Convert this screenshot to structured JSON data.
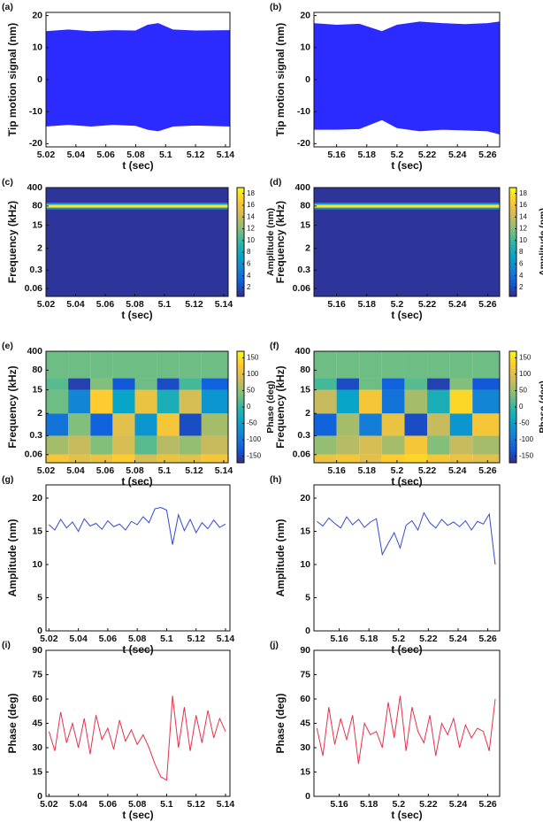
{
  "colormap": [
    "#352a87",
    "#0f5cdd",
    "#1481d6",
    "#06a4ca",
    "#2eb7a4",
    "#87bf77",
    "#d1bb59",
    "#fec832",
    "#f9fb0e"
  ],
  "chart_data": [
    {
      "label": "(a)",
      "type": "area",
      "xlabel": "t (sec)",
      "ylabel": "Tip motion signal (nm)",
      "color": "#2b2bff",
      "xlim": [
        5.02,
        5.143
      ],
      "xticks": [
        5.02,
        5.04,
        5.06,
        5.08,
        5.1,
        5.12,
        5.14
      ],
      "ylim": [
        -21,
        21
      ],
      "yticks": [
        -20,
        -10,
        0,
        10,
        20
      ],
      "x": [
        5.02,
        5.035,
        5.05,
        5.065,
        5.08,
        5.088,
        5.095,
        5.105,
        5.12,
        5.143
      ],
      "upper": [
        15,
        15.5,
        15,
        15.3,
        15.2,
        17,
        17.5,
        15.5,
        15.2,
        15.3
      ],
      "lower": [
        -14.5,
        -14,
        -14.5,
        -14,
        -14.3,
        -15.5,
        -16,
        -14.5,
        -14.2,
        -14.5
      ]
    },
    {
      "label": "(b)",
      "type": "area",
      "xlabel": "t (sec)",
      "ylabel": "Tip motion signal (nm)",
      "color": "#2b2bff",
      "xlim": [
        5.145,
        5.268
      ],
      "xticks": [
        5.16,
        5.18,
        5.2,
        5.22,
        5.24,
        5.26
      ],
      "ylim": [
        -21,
        21
      ],
      "yticks": [
        -20,
        -10,
        0,
        10,
        20
      ],
      "x": [
        5.145,
        5.16,
        5.175,
        5.19,
        5.2,
        5.215,
        5.23,
        5.245,
        5.26,
        5.268
      ],
      "upper": [
        17.5,
        17,
        17.3,
        15,
        17,
        18,
        17.5,
        17.2,
        17.5,
        18
      ],
      "lower": [
        -15.5,
        -15.5,
        -15.3,
        -12.5,
        -15,
        -16,
        -15.5,
        -15.7,
        -16,
        -17
      ]
    },
    {
      "label": "(c)",
      "type": "heatmap",
      "xlabel": "t (sec)",
      "ylabel": "Frequency (kHz)",
      "clabel": "Amplitude (nm)",
      "xlim": [
        5.02,
        5.143
      ],
      "xticks": [
        5.02,
        5.04,
        5.06,
        5.08,
        5.1,
        5.12,
        5.14
      ],
      "ylog": true,
      "ylim": [
        0.03,
        400
      ],
      "yticks": [
        0.06,
        0.3,
        2,
        15,
        80,
        400
      ],
      "clim": [
        0.5,
        19
      ],
      "cticks": [
        2,
        4,
        6,
        8,
        10,
        12,
        14,
        16,
        18
      ],
      "x_bins": [
        5.02,
        5.143
      ],
      "freq_bins": [
        0.03,
        60,
        70,
        90,
        105,
        400
      ],
      "values": [
        [
          1
        ],
        [
          6
        ],
        [
          18
        ],
        [
          6
        ],
        [
          1
        ]
      ]
    },
    {
      "label": "(d)",
      "type": "heatmap",
      "xlabel": "t (sec)",
      "ylabel": "Frequency (kHz)",
      "clabel": "Amplitude (nm)",
      "xlim": [
        5.145,
        5.268
      ],
      "xticks": [
        5.16,
        5.18,
        5.2,
        5.22,
        5.24,
        5.26
      ],
      "ylog": true,
      "ylim": [
        0.03,
        400
      ],
      "yticks": [
        0.06,
        0.3,
        2,
        15,
        80,
        400
      ],
      "clim": [
        0.5,
        19
      ],
      "cticks": [
        2,
        4,
        6,
        8,
        10,
        12,
        14,
        16,
        18
      ],
      "x_bins": [
        5.145,
        5.268
      ],
      "freq_bins": [
        0.03,
        60,
        70,
        90,
        105,
        400
      ],
      "values": [
        [
          1
        ],
        [
          6
        ],
        [
          18
        ],
        [
          6
        ],
        [
          1
        ]
      ]
    },
    {
      "label": "(e)",
      "type": "heatmap",
      "xlabel": "t (sec)",
      "ylabel": "Frequency (kHz)",
      "clabel": "Phase (deg)",
      "xlim": [
        5.02,
        5.143
      ],
      "xticks": [
        5.02,
        5.04,
        5.06,
        5.08,
        5.1,
        5.12,
        5.14
      ],
      "ylog": true,
      "ylim": [
        0.03,
        400
      ],
      "yticks": [
        0.06,
        0.3,
        2,
        15,
        80,
        400
      ],
      "clim": [
        -170,
        170
      ],
      "cticks": [
        -150,
        -100,
        -50,
        0,
        50,
        100,
        150
      ],
      "x_bins": [
        5.02,
        5.035,
        5.05,
        5.065,
        5.08,
        5.095,
        5.11,
        5.125,
        5.143
      ],
      "freq_bins": [
        0.03,
        0.06,
        0.3,
        2,
        15,
        40,
        400
      ],
      "values": [
        [
          120,
          100,
          110,
          130,
          90,
          110,
          100,
          120
        ],
        [
          60,
          80,
          40,
          90,
          20,
          70,
          50,
          80
        ],
        [
          -100,
          40,
          -120,
          100,
          -60,
          120,
          -140,
          60
        ],
        [
          30,
          -80,
          130,
          -40,
          110,
          -20,
          90,
          -60
        ],
        [
          20,
          -150,
          40,
          -130,
          30,
          -140,
          10,
          -120
        ],
        [
          30,
          30,
          30,
          30,
          30,
          30,
          30,
          30
        ]
      ]
    },
    {
      "label": "(f)",
      "type": "heatmap",
      "xlabel": "t (sec)",
      "ylabel": "Frequency (kHz)",
      "clabel": "Phase (deg)",
      "xlim": [
        5.145,
        5.268
      ],
      "xticks": [
        5.16,
        5.18,
        5.2,
        5.22,
        5.24,
        5.26
      ],
      "ylog": true,
      "ylim": [
        0.03,
        400
      ],
      "yticks": [
        0.06,
        0.3,
        2,
        15,
        80,
        400
      ],
      "clim": [
        -170,
        170
      ],
      "cticks": [
        -150,
        -100,
        -50,
        0,
        50,
        100,
        150
      ],
      "x_bins": [
        5.145,
        5.16,
        5.175,
        5.19,
        5.205,
        5.22,
        5.235,
        5.25,
        5.268
      ],
      "freq_bins": [
        0.03,
        0.06,
        0.3,
        2,
        15,
        40,
        400
      ],
      "values": [
        [
          110,
          120,
          100,
          130,
          140,
          120,
          110,
          100
        ],
        [
          50,
          70,
          90,
          60,
          120,
          40,
          80,
          60
        ],
        [
          -120,
          60,
          -90,
          110,
          -140,
          80,
          -60,
          120
        ],
        [
          80,
          -40,
          120,
          -100,
          60,
          -20,
          140,
          -80
        ],
        [
          10,
          -140,
          30,
          -120,
          20,
          -150,
          40,
          -130
        ],
        [
          30,
          30,
          30,
          30,
          30,
          30,
          30,
          30
        ]
      ]
    },
    {
      "label": "(g)",
      "type": "line",
      "xlabel": "t (sec)",
      "ylabel": "Amplitude (nm)",
      "color": "#3548d4",
      "xlim": [
        5.018,
        5.143
      ],
      "xticks": [
        5.02,
        5.04,
        5.06,
        5.08,
        5.1,
        5.12,
        5.14
      ],
      "ylim": [
        0,
        22
      ],
      "yticks": [
        0,
        5,
        10,
        15,
        20
      ],
      "x": [
        5.02,
        5.024,
        5.028,
        5.032,
        5.036,
        5.04,
        5.044,
        5.048,
        5.052,
        5.056,
        5.06,
        5.064,
        5.068,
        5.072,
        5.076,
        5.08,
        5.084,
        5.088,
        5.092,
        5.096,
        5.1,
        5.104,
        5.108,
        5.112,
        5.116,
        5.12,
        5.124,
        5.128,
        5.132,
        5.136,
        5.14
      ],
      "values": [
        16,
        15.2,
        16.8,
        15.5,
        16.4,
        15,
        16.9,
        15.8,
        16.2,
        15.3,
        16.6,
        15.7,
        16.1,
        15.2,
        16.5,
        16,
        17.2,
        16.3,
        18.4,
        18.6,
        18.2,
        13,
        17.5,
        15.1,
        16.8,
        14.8,
        16.3,
        15.4,
        16.7,
        15.6,
        16.1
      ]
    },
    {
      "label": "(h)",
      "type": "line",
      "xlabel": "t (sec)",
      "ylabel": "Amplitude (nm)",
      "color": "#3548d4",
      "xlim": [
        5.143,
        5.268
      ],
      "xticks": [
        5.16,
        5.18,
        5.2,
        5.22,
        5.24,
        5.26
      ],
      "ylim": [
        0,
        22
      ],
      "yticks": [
        0,
        5,
        10,
        15,
        20
      ],
      "x": [
        5.145,
        5.149,
        5.153,
        5.157,
        5.161,
        5.165,
        5.169,
        5.173,
        5.177,
        5.181,
        5.185,
        5.189,
        5.193,
        5.197,
        5.201,
        5.205,
        5.209,
        5.213,
        5.217,
        5.221,
        5.225,
        5.229,
        5.233,
        5.237,
        5.241,
        5.245,
        5.249,
        5.253,
        5.257,
        5.261,
        5.265
      ],
      "values": [
        16.5,
        15.8,
        17,
        16.2,
        15.5,
        17.2,
        16,
        16.8,
        15.6,
        16.4,
        16.9,
        11.5,
        13.2,
        14.8,
        12.5,
        15.9,
        16.6,
        15.2,
        17.8,
        16.3,
        15.5,
        16.8,
        15.9,
        16.4,
        15.7,
        16.6,
        15.2,
        16.5,
        16.1,
        17.6,
        10
      ]
    },
    {
      "label": "(i)",
      "type": "line",
      "xlabel": "t (sec)",
      "ylabel": "Phase (deg)",
      "color": "#e8304a",
      "xlim": [
        5.018,
        5.143
      ],
      "xticks": [
        5.02,
        5.04,
        5.06,
        5.08,
        5.1,
        5.12,
        5.14
      ],
      "ylim": [
        0,
        90
      ],
      "yticks": [
        0,
        15,
        30,
        45,
        60,
        75,
        90
      ],
      "x": [
        5.02,
        5.024,
        5.028,
        5.032,
        5.036,
        5.04,
        5.044,
        5.048,
        5.052,
        5.056,
        5.06,
        5.064,
        5.068,
        5.072,
        5.076,
        5.08,
        5.084,
        5.088,
        5.092,
        5.096,
        5.1,
        5.104,
        5.108,
        5.112,
        5.116,
        5.12,
        5.124,
        5.128,
        5.132,
        5.136,
        5.14
      ],
      "values": [
        40,
        28,
        52,
        33,
        45,
        30,
        48,
        26,
        50,
        35,
        42,
        29,
        47,
        34,
        41,
        32,
        38,
        30,
        20,
        12,
        10,
        62,
        30,
        55,
        28,
        50,
        33,
        53,
        36,
        48,
        40
      ]
    },
    {
      "label": "(j)",
      "type": "line",
      "xlabel": "t (sec)",
      "ylabel": "Phase (deg)",
      "color": "#e8304a",
      "xlim": [
        5.143,
        5.268
      ],
      "xticks": [
        5.16,
        5.18,
        5.2,
        5.22,
        5.24,
        5.26
      ],
      "ylim": [
        0,
        90
      ],
      "yticks": [
        0,
        15,
        30,
        45,
        60,
        75,
        90
      ],
      "x": [
        5.145,
        5.149,
        5.153,
        5.157,
        5.161,
        5.165,
        5.169,
        5.173,
        5.177,
        5.181,
        5.185,
        5.189,
        5.193,
        5.197,
        5.201,
        5.205,
        5.209,
        5.213,
        5.217,
        5.221,
        5.225,
        5.229,
        5.233,
        5.237,
        5.241,
        5.245,
        5.249,
        5.253,
        5.257,
        5.261,
        5.265
      ],
      "values": [
        42,
        25,
        55,
        32,
        48,
        35,
        50,
        20,
        45,
        38,
        40,
        30,
        58,
        36,
        62,
        28,
        55,
        40,
        33,
        50,
        25,
        45,
        38,
        48,
        30,
        44,
        36,
        42,
        40,
        28,
        60
      ]
    }
  ]
}
